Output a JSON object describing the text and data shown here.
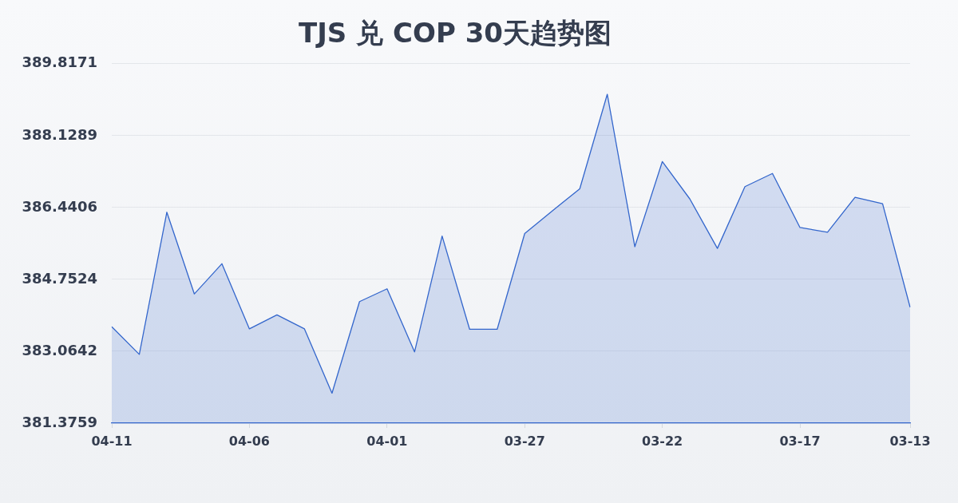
{
  "chart_data": {
    "type": "area",
    "title": "TJS 兑 COP 30天趋势图",
    "categories": [
      "04-11",
      null,
      null,
      null,
      null,
      "04-06",
      null,
      null,
      null,
      null,
      "04-01",
      null,
      null,
      null,
      null,
      "03-27",
      null,
      null,
      null,
      null,
      "03-22",
      null,
      null,
      null,
      null,
      "03-17",
      null,
      null,
      null,
      "03-13"
    ],
    "values": [
      383.64,
      382.99,
      386.33,
      384.41,
      385.12,
      383.59,
      383.92,
      383.59,
      382.08,
      384.23,
      384.53,
      383.05,
      385.77,
      383.58,
      383.58,
      385.83,
      386.36,
      386.88,
      389.1,
      385.52,
      387.52,
      386.64,
      385.48,
      386.93,
      387.24,
      385.97,
      385.86,
      386.68,
      386.53,
      384.1
    ],
    "color": "#3366cc",
    "ylim": [
      381.3759,
      389.8171
    ],
    "yticks": [
      381.3759,
      383.0642,
      384.7524,
      386.4406,
      388.1289,
      389.8171
    ],
    "grid": "y",
    "marker": "none"
  }
}
